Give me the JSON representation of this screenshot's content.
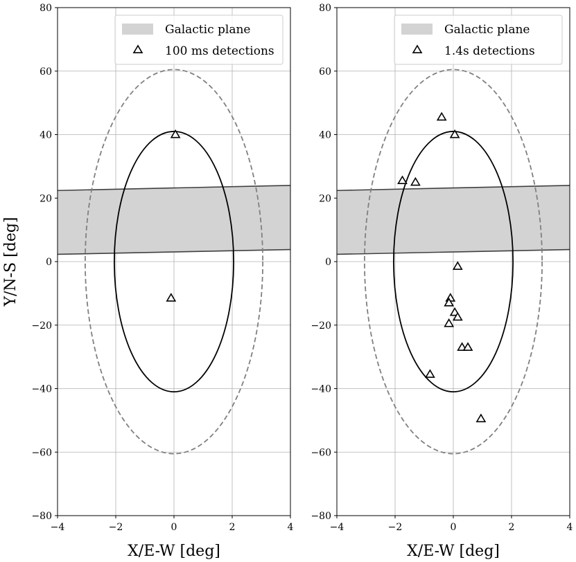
{
  "chart_data": [
    {
      "type": "scatter",
      "xlabel": "X/E-W [deg]",
      "ylabel": "Y/N-S [deg]",
      "xlim": [
        -4,
        4
      ],
      "ylim": [
        -80,
        80
      ],
      "xticks": [
        -4,
        -2,
        0,
        2,
        4
      ],
      "yticks": [
        -80,
        -60,
        -40,
        -20,
        0,
        20,
        40,
        60,
        80
      ],
      "xtick_labels": [
        "−4",
        "−2",
        "0",
        "2",
        "4"
      ],
      "ytick_labels": [
        "−80",
        "−60",
        "−40",
        "−20",
        "0",
        "20",
        "40",
        "60",
        "80"
      ],
      "grid": true,
      "legend_position": "top-right",
      "colors": {
        "band_fill": "#d3d3d3",
        "band_edge": "#404040",
        "inner_ellipse": "#000000",
        "outer_ellipse": "#808080",
        "marker": "#000000"
      },
      "galactic_plane": {
        "label": "Galactic plane",
        "lower_edge": [
          [
            -4,
            2.3
          ],
          [
            4,
            3.8
          ]
        ],
        "upper_edge": [
          [
            -4,
            22.4
          ],
          [
            4,
            24.0
          ]
        ]
      },
      "inner_ellipse": {
        "center": [
          0,
          0
        ],
        "x_radius": 2.05,
        "y_radius": 41,
        "style": "solid"
      },
      "outer_ellipse": {
        "center": [
          0,
          0
        ],
        "x_radius": 3.05,
        "y_radius": 60.5,
        "style": "dashed"
      },
      "series": [
        {
          "name": "100 ms detections",
          "marker": "triangle",
          "points": [
            [
              0.05,
              40.0
            ],
            [
              -0.1,
              -11.5
            ]
          ]
        }
      ]
    },
    {
      "type": "scatter",
      "xlabel": "X/E-W [deg]",
      "ylabel": "",
      "xlim": [
        -4,
        4
      ],
      "ylim": [
        -80,
        80
      ],
      "xticks": [
        -4,
        -2,
        0,
        2,
        4
      ],
      "yticks": [
        -80,
        -60,
        -40,
        -20,
        0,
        20,
        40,
        60,
        80
      ],
      "xtick_labels": [
        "−4",
        "−2",
        "0",
        "2",
        "4"
      ],
      "ytick_labels": [
        "−80",
        "−60",
        "−40",
        "−20",
        "0",
        "20",
        "40",
        "60",
        "80"
      ],
      "grid": true,
      "legend_position": "top-right",
      "colors": {
        "band_fill": "#d3d3d3",
        "band_edge": "#404040",
        "inner_ellipse": "#000000",
        "outer_ellipse": "#808080",
        "marker": "#000000"
      },
      "galactic_plane": {
        "label": "Galactic plane",
        "lower_edge": [
          [
            -4,
            2.3
          ],
          [
            4,
            3.8
          ]
        ],
        "upper_edge": [
          [
            -4,
            22.4
          ],
          [
            4,
            24.0
          ]
        ]
      },
      "inner_ellipse": {
        "center": [
          0,
          0
        ],
        "x_radius": 2.05,
        "y_radius": 41,
        "style": "solid"
      },
      "outer_ellipse": {
        "center": [
          0,
          0
        ],
        "x_radius": 3.05,
        "y_radius": 60.5,
        "style": "dashed"
      },
      "series": [
        {
          "name": "1.4s detections",
          "marker": "triangle",
          "points": [
            [
              -0.4,
              45.5
            ],
            [
              0.05,
              40.0
            ],
            [
              -1.75,
              25.5
            ],
            [
              -1.3,
              25.0
            ],
            [
              0.15,
              -1.5
            ],
            [
              -0.1,
              -11.5
            ],
            [
              -0.15,
              -13.0
            ],
            [
              0.05,
              -16.0
            ],
            [
              0.15,
              -17.5
            ],
            [
              -0.15,
              -19.5
            ],
            [
              0.3,
              -27.0
            ],
            [
              0.5,
              -27.0
            ],
            [
              -0.8,
              -35.5
            ],
            [
              0.95,
              -49.5
            ]
          ]
        }
      ]
    }
  ]
}
